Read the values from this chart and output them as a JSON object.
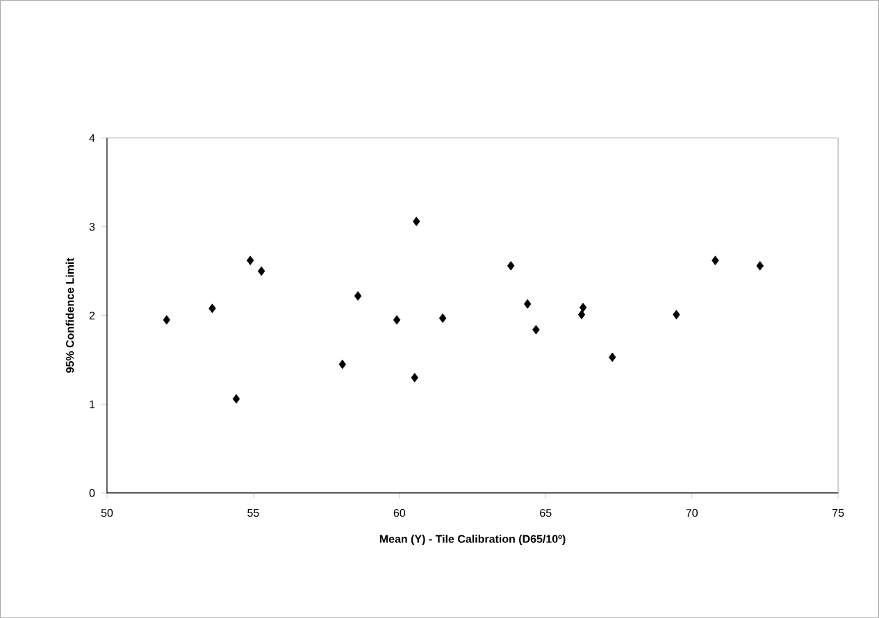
{
  "chart_data": {
    "type": "scatter",
    "xlabel": "Mean (Y) - Tile Calibration (D65/10º)",
    "ylabel": "95% Confidence Limit",
    "x": [
      52.04,
      53.6,
      54.42,
      54.9,
      55.28,
      58.05,
      58.58,
      59.91,
      60.58,
      60.52,
      61.48,
      63.81,
      64.38,
      64.67,
      66.23,
      66.28,
      67.28,
      69.47,
      70.8,
      72.33
    ],
    "values": [
      1.95,
      2.08,
      1.06,
      2.62,
      2.5,
      1.45,
      2.22,
      1.95,
      3.06,
      1.3,
      1.97,
      2.56,
      2.13,
      1.84,
      2.01,
      2.09,
      1.53,
      2.01,
      2.62,
      2.56
    ],
    "color": "#000000",
    "marker": "diamond",
    "xlim": [
      50,
      75
    ],
    "ylim": [
      0,
      4
    ],
    "xticks": [
      50,
      55,
      60,
      65,
      70,
      75
    ],
    "yticks": [
      0,
      1,
      2,
      3,
      4
    ],
    "grid": false
  }
}
